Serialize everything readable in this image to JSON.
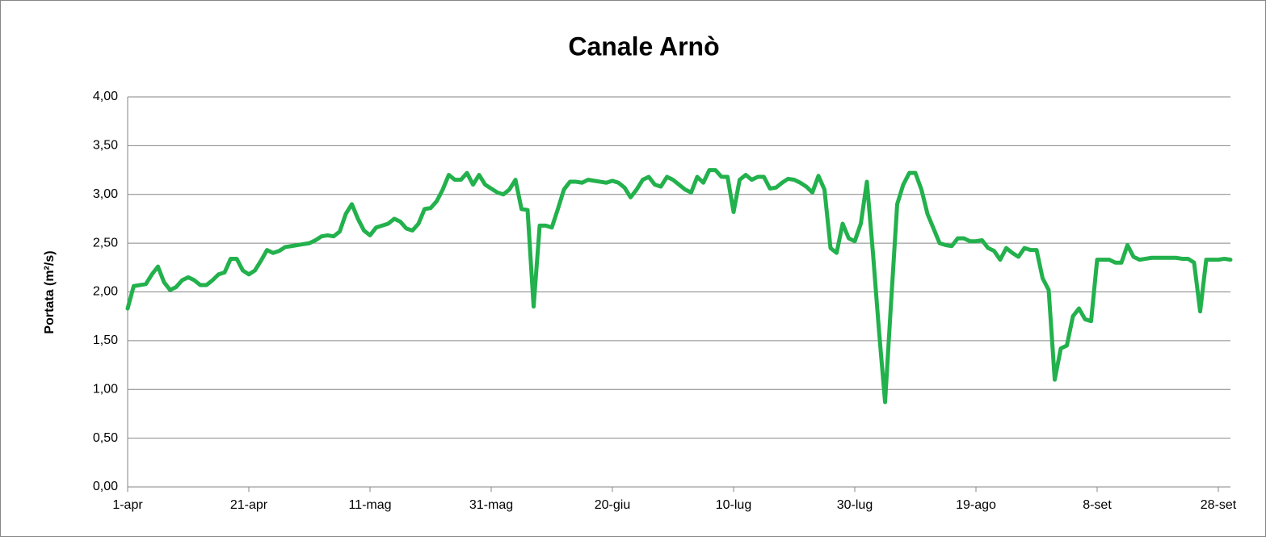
{
  "chart_data": {
    "type": "line",
    "title": "Canale Arnò",
    "ylabel": "Portata (m²/s)",
    "color": "#22b14c",
    "grid": true,
    "ylim": [
      0,
      4
    ],
    "yticks": [
      {
        "value": 0,
        "label": "0,00"
      },
      {
        "value": 0.5,
        "label": "0,50"
      },
      {
        "value": 1,
        "label": "1,00"
      },
      {
        "value": 1.5,
        "label": "1,50"
      },
      {
        "value": 2,
        "label": "2,00"
      },
      {
        "value": 2.5,
        "label": "2,50"
      },
      {
        "value": 3,
        "label": "3,00"
      },
      {
        "value": 3.5,
        "label": "3,50"
      },
      {
        "value": 4,
        "label": "4,00"
      }
    ],
    "categories": [
      "1-apr",
      null,
      null,
      null,
      null,
      null,
      null,
      null,
      null,
      null,
      null,
      null,
      null,
      null,
      null,
      null,
      null,
      null,
      null,
      null,
      "21-apr",
      null,
      null,
      null,
      null,
      null,
      null,
      null,
      null,
      null,
      null,
      null,
      null,
      null,
      null,
      null,
      null,
      null,
      null,
      null,
      "11-mag",
      null,
      null,
      null,
      null,
      null,
      null,
      null,
      null,
      null,
      null,
      null,
      null,
      null,
      null,
      null,
      null,
      null,
      null,
      null,
      "31-mag",
      null,
      null,
      null,
      null,
      null,
      null,
      null,
      null,
      null,
      null,
      null,
      null,
      null,
      null,
      null,
      null,
      null,
      null,
      null,
      "20-giu",
      null,
      null,
      null,
      null,
      null,
      null,
      null,
      null,
      null,
      null,
      null,
      null,
      null,
      null,
      null,
      null,
      null,
      null,
      null,
      "10-lug",
      null,
      null,
      null,
      null,
      null,
      null,
      null,
      null,
      null,
      null,
      null,
      null,
      null,
      null,
      null,
      null,
      null,
      null,
      null,
      "30-lug",
      null,
      null,
      null,
      null,
      null,
      null,
      null,
      null,
      null,
      null,
      null,
      null,
      null,
      null,
      null,
      null,
      null,
      null,
      null,
      "19-ago",
      null,
      null,
      null,
      null,
      null,
      null,
      null,
      null,
      null,
      null,
      null,
      null,
      null,
      null,
      null,
      null,
      null,
      null,
      null,
      "8-set",
      null,
      null,
      null,
      null,
      null,
      null,
      null,
      null,
      null,
      null,
      null,
      null,
      null,
      null,
      null,
      null,
      null,
      null,
      null,
      "28-set",
      null,
      null
    ],
    "values": [
      1.83,
      2.06,
      2.07,
      2.08,
      2.18,
      2.26,
      2.1,
      2.02,
      2.05,
      2.12,
      2.15,
      2.12,
      2.07,
      2.07,
      2.12,
      2.18,
      2.2,
      2.34,
      2.34,
      2.22,
      2.18,
      2.22,
      2.32,
      2.43,
      2.4,
      2.42,
      2.46,
      2.47,
      2.48,
      2.49,
      2.5,
      2.53,
      2.57,
      2.58,
      2.57,
      2.62,
      2.8,
      2.9,
      2.75,
      2.63,
      2.58,
      2.66,
      2.68,
      2.7,
      2.75,
      2.72,
      2.65,
      2.63,
      2.7,
      2.85,
      2.86,
      2.93,
      3.05,
      3.2,
      3.15,
      3.15,
      3.22,
      3.1,
      3.2,
      3.1,
      3.06,
      3.02,
      3.0,
      3.05,
      3.15,
      2.85,
      2.84,
      1.85,
      2.68,
      2.68,
      2.66,
      2.85,
      3.05,
      3.13,
      3.13,
      3.12,
      3.15,
      3.14,
      3.13,
      3.12,
      3.14,
      3.12,
      3.07,
      2.97,
      3.05,
      3.15,
      3.18,
      3.1,
      3.08,
      3.18,
      3.15,
      3.1,
      3.05,
      3.02,
      3.18,
      3.12,
      3.25,
      3.25,
      3.18,
      3.18,
      2.82,
      3.15,
      3.2,
      3.15,
      3.18,
      3.18,
      3.06,
      3.07,
      3.12,
      3.16,
      3.15,
      3.12,
      3.08,
      3.02,
      3.19,
      3.05,
      2.45,
      2.4,
      2.7,
      2.55,
      2.52,
      2.7,
      3.13,
      2.4,
      1.6,
      0.87,
      1.9,
      2.9,
      3.1,
      3.22,
      3.22,
      3.05,
      2.8,
      2.65,
      2.5,
      2.48,
      2.47,
      2.55,
      2.55,
      2.52,
      2.52,
      2.53,
      2.45,
      2.42,
      2.33,
      2.45,
      2.4,
      2.36,
      2.45,
      2.43,
      2.43,
      2.14,
      2.02,
      1.1,
      1.42,
      1.45,
      1.75,
      1.83,
      1.72,
      1.7,
      2.33,
      2.33,
      2.33,
      2.3,
      2.3,
      2.48,
      2.36,
      2.33,
      2.34,
      2.35,
      2.35,
      2.35,
      2.35,
      2.35,
      2.34,
      2.34,
      2.3,
      1.8,
      2.33,
      2.33,
      2.33,
      2.34,
      2.33
    ]
  }
}
